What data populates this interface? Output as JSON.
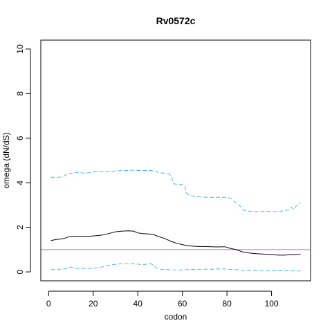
{
  "chart_data": {
    "type": "line",
    "title": "Rv0572c",
    "xlabel": "codon",
    "ylabel": "omega (dN/dS)",
    "xlim": [
      -3.5,
      117.5
    ],
    "ylim": [
      -0.4,
      10.4
    ],
    "x_ticks": [
      0,
      20,
      40,
      60,
      80,
      100
    ],
    "y_ticks": [
      0,
      2,
      4,
      6,
      8,
      10
    ],
    "reference_line": {
      "y": 1,
      "color": "#cc66cc"
    },
    "series": [
      {
        "role": "upper",
        "color": "#4fb3e8",
        "dash": "dashed",
        "points": [
          [
            1,
            4.25
          ],
          [
            3,
            4.25
          ],
          [
            5,
            4.25
          ],
          [
            7,
            4.3
          ],
          [
            8,
            4.4
          ],
          [
            10,
            4.42
          ],
          [
            12,
            4.45
          ],
          [
            14,
            4.48
          ],
          [
            16,
            4.42
          ],
          [
            18,
            4.45
          ],
          [
            20,
            4.48
          ],
          [
            24,
            4.5
          ],
          [
            28,
            4.52
          ],
          [
            32,
            4.54
          ],
          [
            36,
            4.55
          ],
          [
            38,
            4.57
          ],
          [
            40,
            4.55
          ],
          [
            44,
            4.55
          ],
          [
            46,
            4.55
          ],
          [
            48,
            4.5
          ],
          [
            50,
            4.45
          ],
          [
            52,
            4.43
          ],
          [
            54,
            4.4
          ],
          [
            55,
            4.3
          ],
          [
            56,
            3.95
          ],
          [
            58,
            3.93
          ],
          [
            60,
            3.92
          ],
          [
            61,
            3.85
          ],
          [
            62,
            3.5
          ],
          [
            64,
            3.42
          ],
          [
            66,
            3.38
          ],
          [
            70,
            3.35
          ],
          [
            74,
            3.35
          ],
          [
            78,
            3.35
          ],
          [
            80,
            3.35
          ],
          [
            82,
            3.3
          ],
          [
            84,
            3.1
          ],
          [
            86,
            2.95
          ],
          [
            87,
            2.8
          ],
          [
            88,
            2.75
          ],
          [
            90,
            2.72
          ],
          [
            94,
            2.7
          ],
          [
            98,
            2.72
          ],
          [
            102,
            2.7
          ],
          [
            104,
            2.72
          ],
          [
            106,
            2.75
          ],
          [
            108,
            2.8
          ],
          [
            109,
            2.9
          ],
          [
            110,
            2.8
          ],
          [
            111,
            2.95
          ],
          [
            112,
            3.0
          ],
          [
            113,
            3.1
          ]
        ]
      },
      {
        "role": "estimate",
        "color": "#000000",
        "dash": "solid",
        "points": [
          [
            1,
            1.4
          ],
          [
            3,
            1.45
          ],
          [
            5,
            1.47
          ],
          [
            7,
            1.5
          ],
          [
            9,
            1.58
          ],
          [
            11,
            1.6
          ],
          [
            13,
            1.6
          ],
          [
            15,
            1.6
          ],
          [
            18,
            1.6
          ],
          [
            21,
            1.62
          ],
          [
            24,
            1.65
          ],
          [
            27,
            1.72
          ],
          [
            30,
            1.8
          ],
          [
            33,
            1.83
          ],
          [
            36,
            1.84
          ],
          [
            38,
            1.83
          ],
          [
            40,
            1.75
          ],
          [
            42,
            1.72
          ],
          [
            45,
            1.7
          ],
          [
            47,
            1.68
          ],
          [
            49,
            1.6
          ],
          [
            52,
            1.5
          ],
          [
            55,
            1.37
          ],
          [
            58,
            1.27
          ],
          [
            61,
            1.2
          ],
          [
            64,
            1.16
          ],
          [
            67,
            1.14
          ],
          [
            70,
            1.14
          ],
          [
            73,
            1.13
          ],
          [
            76,
            1.12
          ],
          [
            79,
            1.13
          ],
          [
            81,
            1.07
          ],
          [
            84,
            1.0
          ],
          [
            87,
            0.9
          ],
          [
            90,
            0.85
          ],
          [
            93,
            0.82
          ],
          [
            96,
            0.8
          ],
          [
            100,
            0.78
          ],
          [
            103,
            0.75
          ],
          [
            106,
            0.75
          ],
          [
            108,
            0.77
          ],
          [
            110,
            0.77
          ],
          [
            112,
            0.78
          ],
          [
            113,
            0.8
          ]
        ]
      },
      {
        "role": "lower",
        "color": "#4fb3e8",
        "dash": "dashed",
        "points": [
          [
            1,
            0.1
          ],
          [
            5,
            0.12
          ],
          [
            8,
            0.14
          ],
          [
            10,
            0.22
          ],
          [
            12,
            0.16
          ],
          [
            16,
            0.16
          ],
          [
            20,
            0.16
          ],
          [
            24,
            0.22
          ],
          [
            28,
            0.32
          ],
          [
            32,
            0.36
          ],
          [
            36,
            0.37
          ],
          [
            40,
            0.35
          ],
          [
            42,
            0.32
          ],
          [
            44,
            0.35
          ],
          [
            46,
            0.37
          ],
          [
            48,
            0.2
          ],
          [
            50,
            0.12
          ],
          [
            54,
            0.1
          ],
          [
            58,
            0.08
          ],
          [
            62,
            0.1
          ],
          [
            66,
            0.12
          ],
          [
            70,
            0.12
          ],
          [
            74,
            0.12
          ],
          [
            78,
            0.14
          ],
          [
            80,
            0.12
          ],
          [
            84,
            0.1
          ],
          [
            88,
            0.07
          ],
          [
            92,
            0.06
          ],
          [
            96,
            0.06
          ],
          [
            100,
            0.06
          ],
          [
            104,
            0.05
          ],
          [
            108,
            0.05
          ],
          [
            112,
            0.04
          ],
          [
            113,
            0.04
          ]
        ]
      }
    ],
    "grid": false,
    "legend": false
  }
}
